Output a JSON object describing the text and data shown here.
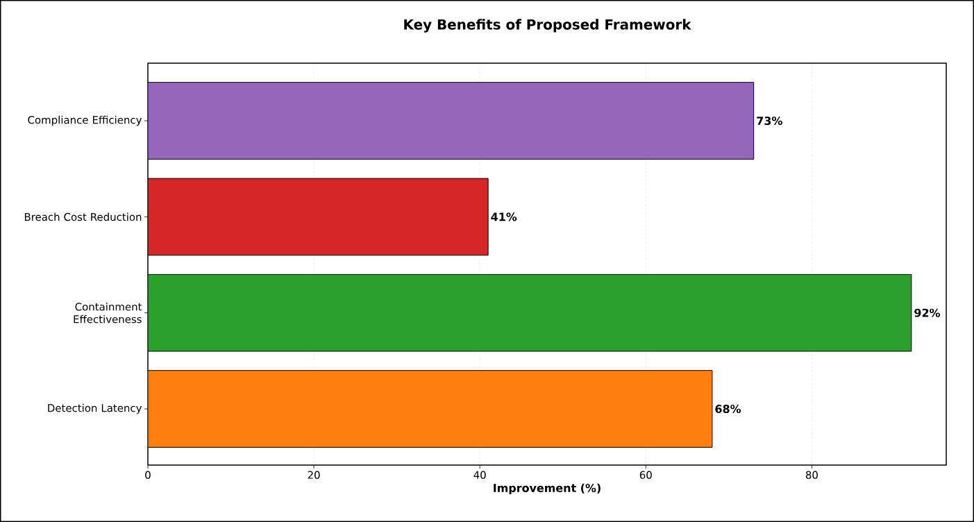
{
  "chart_data": {
    "type": "bar",
    "orientation": "horizontal",
    "title": "Key Benefits of Proposed Framework",
    "xlabel": "Improvement (%)",
    "categories": [
      "Compliance Efficiency",
      "Breach Cost Reduction",
      "Containment Effectiveness",
      "Detection Latency"
    ],
    "values": [
      73,
      41,
      92,
      68
    ],
    "colors": [
      "#9467bd",
      "#d62728",
      "#2ca02c",
      "#ff7f0e"
    ],
    "value_labels": [
      "73%",
      "41%",
      "92%",
      "68%"
    ],
    "xlim": [
      0,
      96.2
    ],
    "xticks": [
      0,
      20,
      40,
      60,
      80
    ],
    "grid": "x"
  }
}
